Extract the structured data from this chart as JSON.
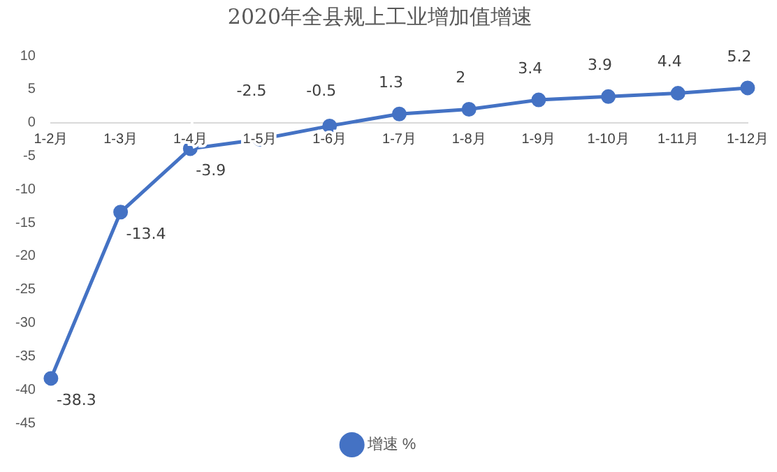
{
  "chart_data": {
    "type": "line",
    "title": "2020年全县规上工业增加值增速",
    "categories": [
      "1-2月",
      "1-3月",
      "1-4月",
      "1-5月",
      "1-6月",
      "1-7月",
      "1-8月",
      "1-9月",
      "1-10月",
      "1-11月",
      "1-12月"
    ],
    "series": [
      {
        "name": "增速 %",
        "color": "#4472c4",
        "values": [
          -38.3,
          -13.4,
          -3.9,
          -2.5,
          -0.5,
          1.3,
          2,
          3.4,
          3.9,
          4.4,
          5.2
        ]
      }
    ],
    "ylim": [
      -45,
      10
    ],
    "yticks": [
      -45,
      -40,
      -35,
      -30,
      -25,
      -20,
      -15,
      -10,
      -5,
      0,
      5,
      10
    ],
    "grid": false,
    "legend": "bottom",
    "marker": "circle",
    "line_style": "solid",
    "data_labels": true
  }
}
